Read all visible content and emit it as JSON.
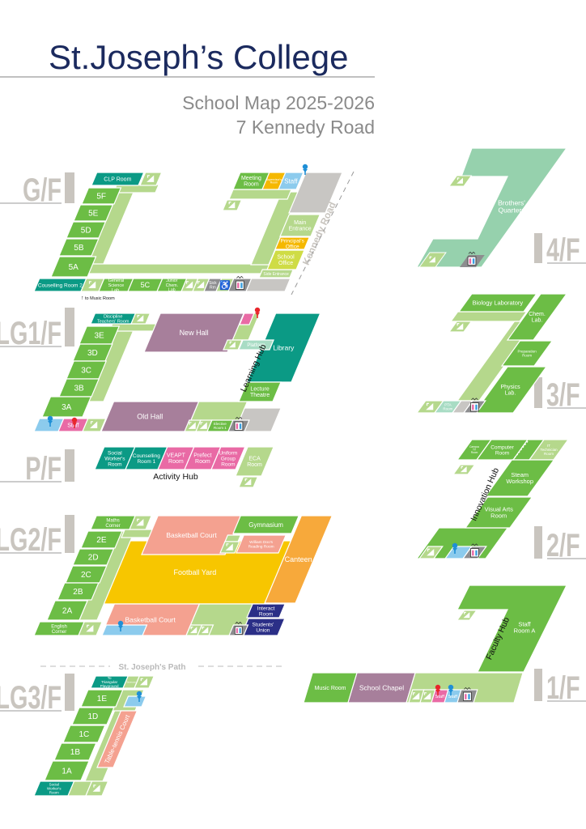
{
  "header": {
    "title": "St.Joseph’s College",
    "subtitle": "School Map 2025-2026",
    "address": "7 Kennedy Road"
  },
  "colors": {
    "green": "#6cbd45",
    "light": "#b5d88c",
    "teal": "#0b9a85",
    "purple": "#a77f9b",
    "salmon": "#f4a190",
    "yellow": "#f7c600",
    "orange": "#f7a93b",
    "navy": "#2b2f87",
    "blue": "#8ccbed",
    "pink": "#e96aa5",
    "gray": "#c8c6c3",
    "dgray": "#8d8d8f",
    "mint": "#96d1ad",
    "pale": "#a8dcc4",
    "office": "#cfdc45",
    "amber": "#f5b800",
    "title": "#1b2a5e",
    "pin_red": "#e8262b",
    "pin_blue": "#1f8fd6"
  },
  "icons": [
    "staircase-icon",
    "lift-toilet-icon",
    "wheelchair-icon",
    "staff-pin-icon",
    "arrow-up-icon"
  ],
  "floors": {
    "gf": {
      "label": "G/F",
      "street": "Kennedy Road",
      "note": "to Music Room",
      "rooms": {
        "clp": "CLP Room",
        "r5f": "5F",
        "r5e": "5E",
        "r5d": "5D",
        "r5b": "5B",
        "r5a": "5A",
        "couns2": "Couselling Room 2",
        "gsl": [
          "General",
          "Science",
          "Lab."
        ],
        "r5c": "5C",
        "jcl": [
          "Junior",
          "Chem.",
          "Lab"
        ],
        "sick": [
          "Sick",
          "Rm"
        ],
        "side": "Side Entrance",
        "office": [
          "School",
          "Office"
        ],
        "principal": [
          "Principal's",
          "Office"
        ],
        "main": [
          "Main",
          "Entrance"
        ],
        "meeting": [
          "Meeting",
          "Room"
        ],
        "supervisor": [
          "Supervisor's",
          "Room"
        ],
        "staff": "Staff"
      }
    },
    "lg1": {
      "label": "LG1/F",
      "hub": "Learning Hub",
      "rooms": {
        "discipline": [
          "Discipline",
          "Teachers' Room"
        ],
        "r3e": "3E",
        "r3d": "3D",
        "r3c": "3C",
        "r3b": "3B",
        "r3a": "3A",
        "staff": "Staff",
        "newhall": "New Hall",
        "oldhall": "Old Hall",
        "library": "Library",
        "lecture": [
          "Lecture",
          "Theatre"
        ],
        "platform": "Platform",
        "elective": [
          "Elective",
          "Room 1"
        ]
      }
    },
    "pf": {
      "label": "P/F",
      "hub": "Activity Hub",
      "rooms": {
        "sw": [
          "Social",
          "Worker's",
          "Room"
        ],
        "couns1": [
          "Counselling",
          "Room 1"
        ],
        "veapt": [
          "VEAPT",
          "Room"
        ],
        "prefect": [
          "Prefect",
          "Room"
        ],
        "uniform": [
          "Uniform",
          "Group",
          "Room"
        ],
        "eca": [
          "ECA",
          "Room"
        ]
      }
    },
    "lg2": {
      "label": "LG2/F",
      "rooms": {
        "maths": [
          "Maths",
          "Corner"
        ],
        "r2e": "2E",
        "r2d": "2D",
        "r2c": "2C",
        "r2b": "2B",
        "r2a": "2A",
        "english": [
          "English",
          "Corner"
        ],
        "bball1": "Basketball Court",
        "gym": "Gymnasium",
        "doo": [
          "William Doo's",
          "Reading Room"
        ],
        "yard": "Football Yard",
        "canteen": "Canteen",
        "bball2": "Basketball Court",
        "interact": [
          "Interact",
          "Room"
        ],
        "union": [
          "Students'",
          "Union"
        ]
      }
    },
    "lg3": {
      "label": "LG3/F",
      "path": "St. Joseph's Path",
      "rooms": {
        "tri": [
          "To",
          "Triangular",
          "Playground"
        ],
        "store": "Storeroom",
        "r1e": "1E",
        "r1d": "1D",
        "r1c": "1C",
        "r1b": "1B",
        "r1a": "1A",
        "sw": [
          "Social",
          "Worker's",
          "Room"
        ],
        "tt": "Table-tennis Court"
      }
    },
    "f4": {
      "label": "4/F",
      "rooms": {
        "brothers": [
          "Brothers'",
          "Quarters"
        ]
      }
    },
    "f3": {
      "label": "3/F",
      "rooms": {
        "bio": "Biology Laboratory",
        "chem": [
          "Chem.",
          "Lab."
        ],
        "prep": [
          "Preparation",
          "Room"
        ],
        "physics": [
          "Physics",
          "Lab."
        ],
        "pta": [
          "PTA",
          "Room"
        ]
      }
    },
    "f2": {
      "label": "2/F",
      "hub": "Innovation Hub",
      "rooms": {
        "tv": [
          "Campus",
          "TV",
          "Room"
        ],
        "computer": [
          "Computer",
          "Room"
        ],
        "it": [
          "IT",
          "Technician",
          "Room"
        ],
        "steam": [
          "Steam",
          "Workshop"
        ],
        "va": [
          "Visual Arts",
          "Room"
        ]
      }
    },
    "f1": {
      "label": "1/F",
      "hub": "Faculty Hub",
      "rooms": {
        "staffa": [
          "Staff",
          "Room A"
        ],
        "music": "Music Room",
        "chapel": "School Chapel",
        "staff1": "Staff",
        "staff2": "Staff"
      }
    }
  }
}
